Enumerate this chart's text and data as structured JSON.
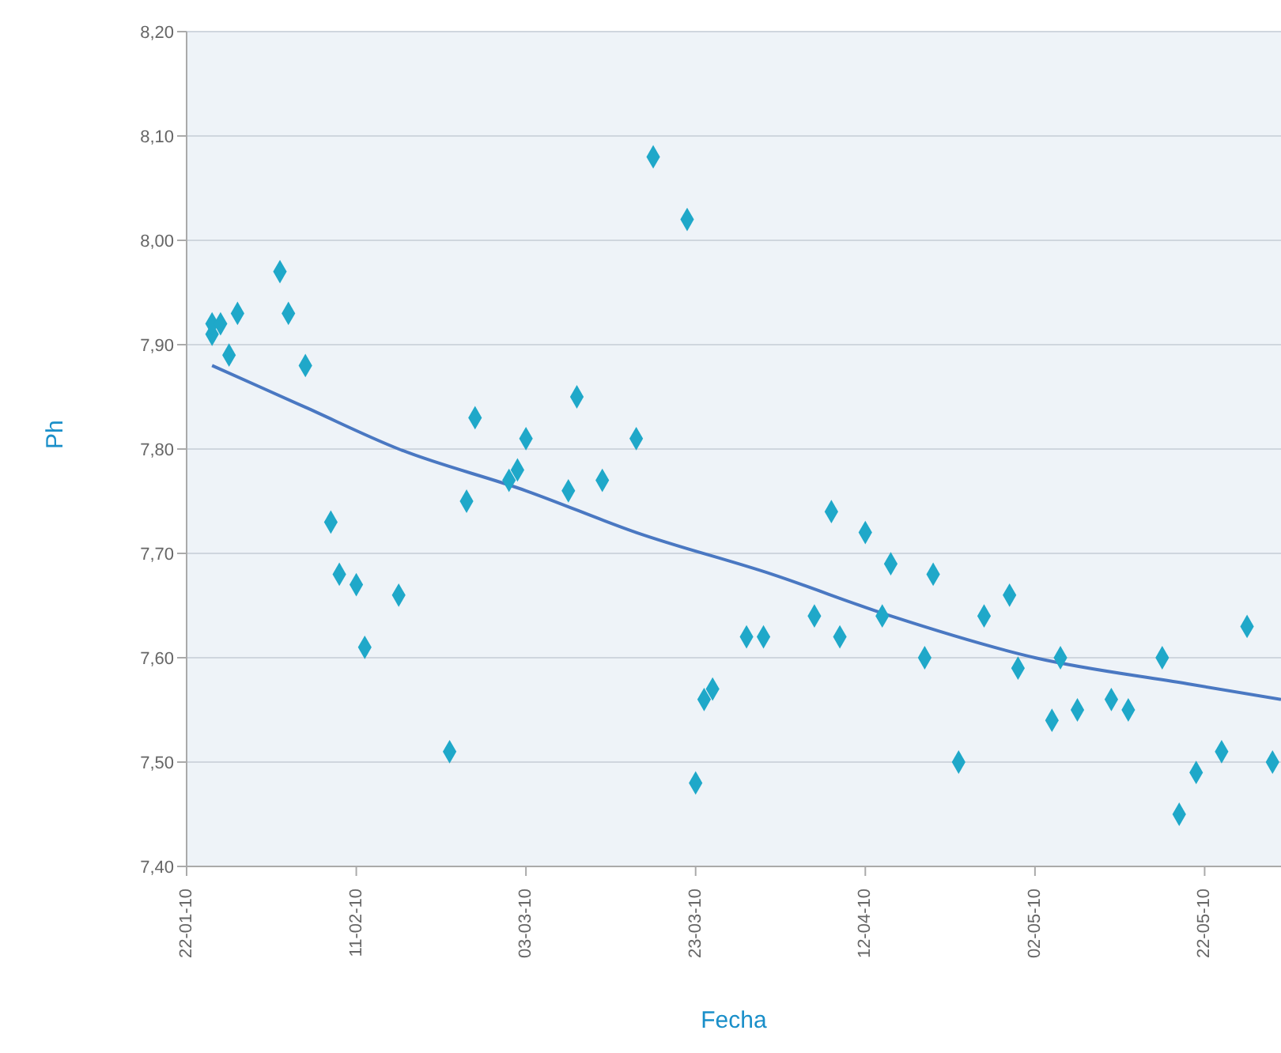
{
  "chart_data": {
    "type": "scatter",
    "xlabel": "Fecha",
    "ylabel": "Ph",
    "xlim": [
      "2010-01-22",
      "2010-05-31"
    ],
    "xticks": [
      {
        "value": "2010-01-22",
        "label": "22-01-10"
      },
      {
        "value": "2010-02-11",
        "label": "11-02-10"
      },
      {
        "value": "2010-03-03",
        "label": "03-03-10"
      },
      {
        "value": "2010-03-23",
        "label": "23-03-10"
      },
      {
        "value": "2010-04-12",
        "label": "12-04-10"
      },
      {
        "value": "2010-05-02",
        "label": "02-05-10"
      },
      {
        "value": "2010-05-22",
        "label": "22-05-10"
      }
    ],
    "ylim": [
      7.4,
      8.2
    ],
    "yticks": [
      {
        "value": 7.4,
        "label": "7,40"
      },
      {
        "value": 7.5,
        "label": "7,50"
      },
      {
        "value": 7.6,
        "label": "7,60"
      },
      {
        "value": 7.7,
        "label": "7,70"
      },
      {
        "value": 7.8,
        "label": "7,80"
      },
      {
        "value": 7.9,
        "label": "7,90"
      },
      {
        "value": 8.0,
        "label": "8,00"
      },
      {
        "value": 8.1,
        "label": "8,10"
      },
      {
        "value": 8.2,
        "label": "8,20"
      }
    ],
    "grid": "y",
    "marker": "diamond",
    "series": [
      {
        "color": "#1fa8c9",
        "x": [
          "2010-01-25",
          "2010-01-25",
          "2010-01-26",
          "2010-01-27",
          "2010-01-28",
          "2010-02-02",
          "2010-02-03",
          "2010-02-05",
          "2010-02-08",
          "2010-02-09",
          "2010-02-11",
          "2010-02-12",
          "2010-02-16",
          "2010-02-22",
          "2010-02-24",
          "2010-02-25",
          "2010-03-01",
          "2010-03-02",
          "2010-03-03",
          "2010-03-08",
          "2010-03-09",
          "2010-03-12",
          "2010-03-16",
          "2010-03-18",
          "2010-03-22",
          "2010-03-23",
          "2010-03-24",
          "2010-03-25",
          "2010-03-29",
          "2010-03-31",
          "2010-04-06",
          "2010-04-08",
          "2010-04-09",
          "2010-04-12",
          "2010-04-14",
          "2010-04-15",
          "2010-04-19",
          "2010-04-20",
          "2010-04-23",
          "2010-04-26",
          "2010-04-29",
          "2010-04-30",
          "2010-05-04",
          "2010-05-05",
          "2010-05-07",
          "2010-05-11",
          "2010-05-13",
          "2010-05-17",
          "2010-05-19",
          "2010-05-21",
          "2010-05-24",
          "2010-05-27",
          "2010-05-30"
        ],
        "values": [
          7.91,
          7.92,
          7.92,
          7.89,
          7.93,
          7.97,
          7.93,
          7.88,
          7.73,
          7.68,
          7.67,
          7.61,
          7.66,
          7.51,
          7.75,
          7.83,
          7.77,
          7.78,
          7.81,
          7.76,
          7.85,
          7.77,
          7.81,
          8.08,
          8.02,
          7.48,
          7.56,
          7.57,
          7.62,
          7.62,
          7.64,
          7.74,
          7.62,
          7.72,
          7.64,
          7.69,
          7.6,
          7.68,
          7.5,
          7.64,
          7.66,
          7.59,
          7.54,
          7.6,
          7.55,
          7.56,
          7.55,
          7.6,
          7.45,
          7.49,
          7.51,
          7.63,
          7.5
        ]
      },
      {
        "type": "line",
        "color": "#4a78c2",
        "marker": "none",
        "line_style": "solid",
        "x": [
          "2010-01-25",
          "2010-02-05",
          "2010-02-16",
          "2010-03-03",
          "2010-03-16",
          "2010-04-01",
          "2010-04-15",
          "2010-05-02",
          "2010-05-20",
          "2010-05-31"
        ],
        "values": [
          7.88,
          7.84,
          7.8,
          7.76,
          7.72,
          7.68,
          7.64,
          7.6,
          7.575,
          7.56
        ]
      }
    ]
  }
}
